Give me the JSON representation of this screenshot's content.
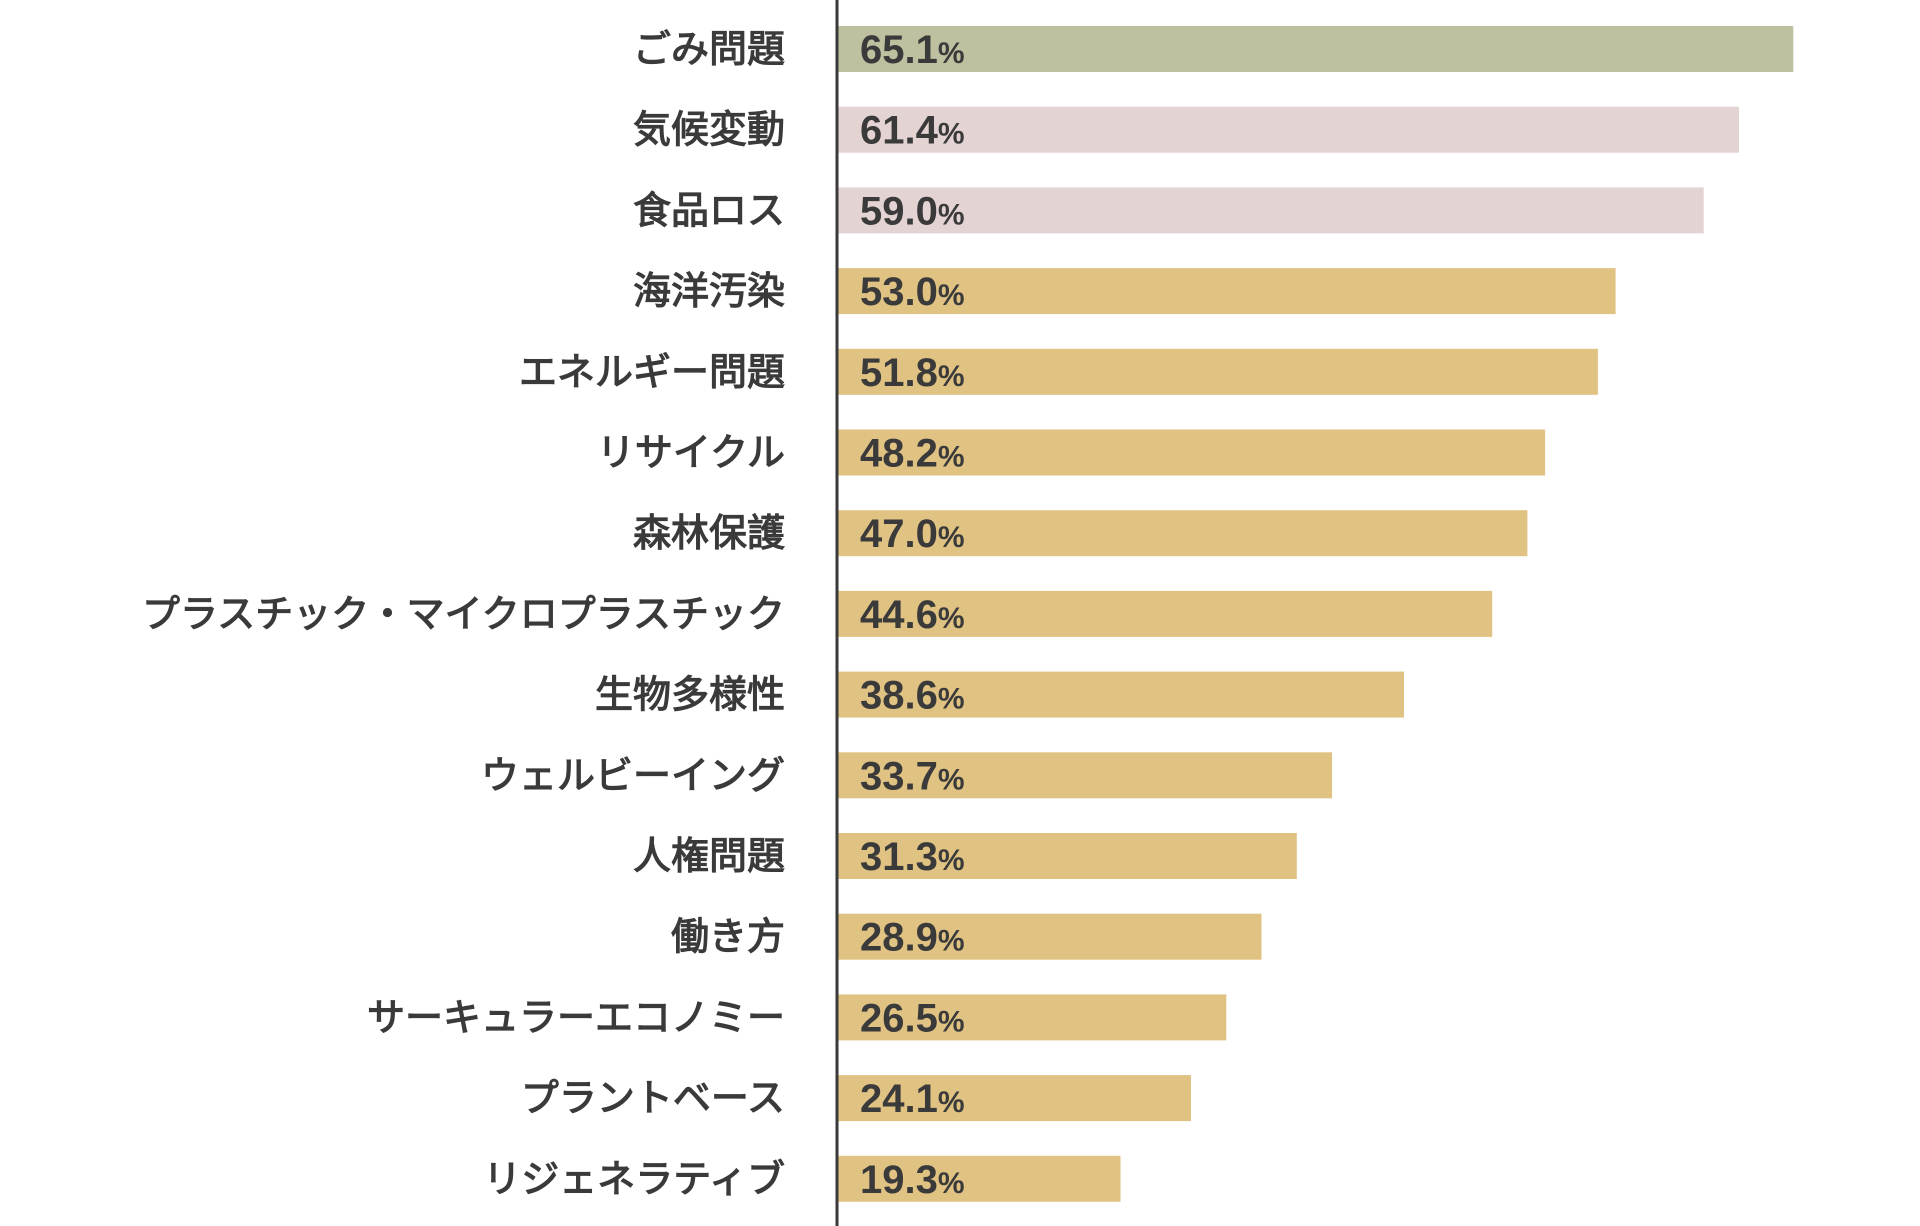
{
  "chart_data": {
    "type": "bar",
    "orientation": "horizontal",
    "title": "",
    "xlabel": "",
    "ylabel": "",
    "unit": "%",
    "xlim": [
      0,
      70
    ],
    "grid": false,
    "legend": "none",
    "bar_colors": {
      "top": "#bfc09f",
      "second_third": "#e4d3d3",
      "rest": "#e0c283"
    },
    "axis_color": "#3a3a3a",
    "categories": [
      "ごみ問題",
      "気候変動",
      "食品ロス",
      "海洋汚染",
      "エネルギー問題",
      "リサイクル",
      "森林保護",
      "プラスチック・マイクロプラスチック",
      "生物多様性",
      "ウェルビーイング",
      "人権問題",
      "働き方",
      "サーキュラーエコノミー",
      "プラントベース",
      "リジェネラティブ"
    ],
    "values": [
      65.1,
      61.4,
      59.0,
      53.0,
      51.8,
      48.2,
      47.0,
      44.6,
      38.6,
      33.7,
      31.3,
      28.9,
      26.5,
      24.1,
      19.3
    ],
    "value_labels": [
      "65.1",
      "61.4",
      "59.0",
      "53.0",
      "51.8",
      "48.2",
      "47.0",
      "44.6",
      "38.6",
      "33.7",
      "31.3",
      "28.9",
      "26.5",
      "24.1",
      "19.3"
    ]
  }
}
